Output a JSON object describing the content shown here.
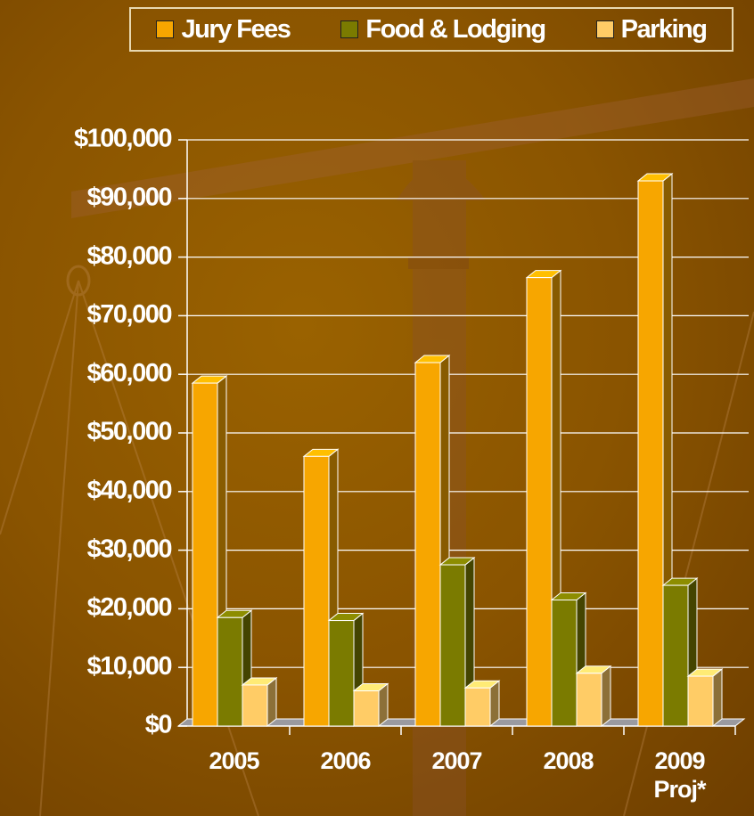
{
  "chart_data": {
    "type": "bar3d",
    "categories": [
      "2005",
      "2006",
      "2007",
      "2008",
      "2009 Proj*"
    ],
    "series": [
      {
        "name": "Jury Fees",
        "color": "#f7a600",
        "values": [
          58500,
          46000,
          62000,
          76500,
          93000
        ]
      },
      {
        "name": "Food & Lodging",
        "color": "#7b7b00",
        "values": [
          18500,
          18000,
          27500,
          21500,
          24000
        ]
      },
      {
        "name": "Parking",
        "color": "#ffcc66",
        "values": [
          7000,
          6000,
          6500,
          9000,
          8500
        ]
      }
    ],
    "ylim": [
      0,
      100000
    ],
    "yticks": [
      {
        "value": 0,
        "label": "$0"
      },
      {
        "value": 10000,
        "label": "$10,000"
      },
      {
        "value": 20000,
        "label": "$20,000"
      },
      {
        "value": 30000,
        "label": "$30,000"
      },
      {
        "value": 40000,
        "label": "$40,000"
      },
      {
        "value": 50000,
        "label": "$50,000"
      },
      {
        "value": 60000,
        "label": "$60,000"
      },
      {
        "value": 70000,
        "label": "$70,000"
      },
      {
        "value": 80000,
        "label": "$80,000"
      },
      {
        "value": 90000,
        "label": "$90,000"
      },
      {
        "value": 100000,
        "label": "$100,000"
      }
    ],
    "grid": true,
    "legend": "top-right"
  }
}
